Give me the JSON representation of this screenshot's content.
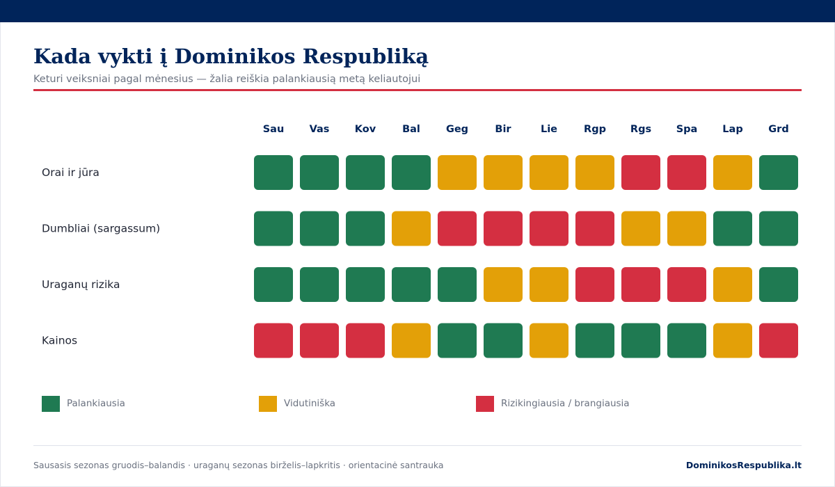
{
  "title": "Kada vykti į Dominikos Respubliką",
  "subtitle": "Keturi veiksniai pagal mėnesius — žalia reiškia palankiausią metą keliautojui",
  "colors": {
    "good": "#1f7a52",
    "medium": "#e3a008",
    "bad": "#d42f41",
    "header_bar": "#00245a",
    "accent_rule": "#d32f41"
  },
  "chart_data": {
    "type": "heatmap",
    "months": [
      "Sau",
      "Vas",
      "Kov",
      "Bal",
      "Geg",
      "Bir",
      "Lie",
      "Rgp",
      "Rgs",
      "Spa",
      "Lap",
      "Grd"
    ],
    "factors": [
      {
        "name": "Orai ir jūra",
        "ratings": [
          "good",
          "good",
          "good",
          "good",
          "medium",
          "medium",
          "medium",
          "medium",
          "bad",
          "bad",
          "medium",
          "good"
        ]
      },
      {
        "name": "Dumbliai (sargassum)",
        "ratings": [
          "good",
          "good",
          "good",
          "medium",
          "bad",
          "bad",
          "bad",
          "bad",
          "medium",
          "medium",
          "good",
          "good"
        ]
      },
      {
        "name": "Uraganų rizika",
        "ratings": [
          "good",
          "good",
          "good",
          "good",
          "good",
          "medium",
          "medium",
          "bad",
          "bad",
          "bad",
          "medium",
          "good"
        ]
      },
      {
        "name": "Kainos",
        "ratings": [
          "bad",
          "bad",
          "bad",
          "medium",
          "good",
          "good",
          "medium",
          "good",
          "good",
          "good",
          "medium",
          "bad"
        ]
      }
    ],
    "legend": [
      {
        "key": "good",
        "label": "Palankiausia"
      },
      {
        "key": "medium",
        "label": "Vidutiniška"
      },
      {
        "key": "bad",
        "label": "Rizikingiausia / brangiausia"
      }
    ]
  },
  "footer": {
    "note": "Sausasis sezonas gruodis–balandis · uraganų sezonas birželis–lapkritis · orientacinė santrauka",
    "brand": "DominikosRespublika.lt"
  }
}
